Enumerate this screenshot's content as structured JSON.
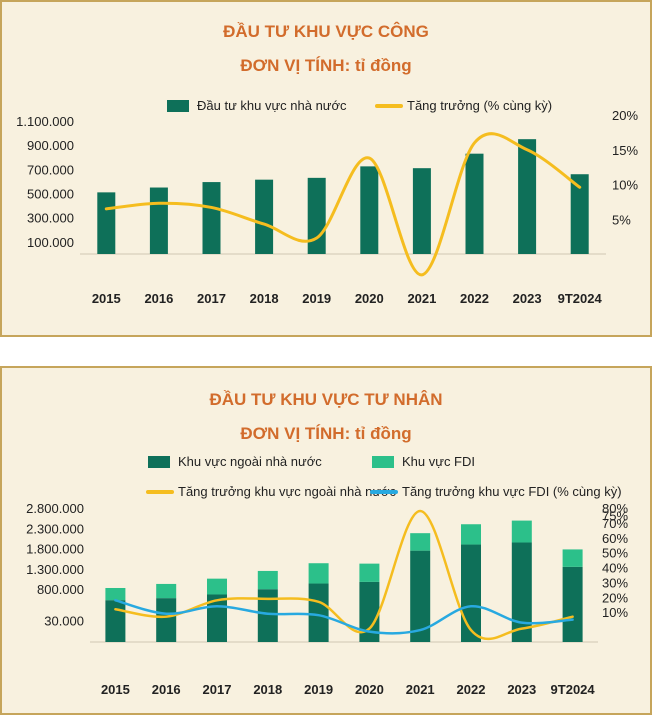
{
  "chart_data": [
    {
      "type": "bar",
      "title": "ĐẦU TƯ KHU VỰC CÔNG",
      "subtitle": "ĐƠN VỊ TÍNH: tỉ đồng",
      "categories": [
        "2015",
        "2016",
        "2017",
        "2018",
        "2019",
        "2020",
        "2021",
        "2022",
        "2023",
        "9T2024"
      ],
      "y_ticks": [
        "100.000",
        "300.000",
        "500.000",
        "700.000",
        "900.000",
        "1.100.000"
      ],
      "y2_ticks": [
        "5%",
        "10%",
        "15%",
        "20%"
      ],
      "ylim": [
        0,
        1150000
      ],
      "y2lim": [
        0,
        20
      ],
      "legend_position": "top",
      "series": [
        {
          "name": "Đầu tư khu vực nhà nước",
          "kind": "bar",
          "axis": "left",
          "color": "#0e7059",
          "values": [
            510000,
            550000,
            595000,
            615000,
            630000,
            725000,
            710000,
            830000,
            950000,
            660000
          ]
        },
        {
          "name": "Tăng trưởng (% cùng kỳ)",
          "kind": "line",
          "axis": "right",
          "color": "#f5bd1f",
          "values": [
            6.5,
            7.3,
            6.7,
            4.3,
            2.3,
            13.8,
            -3.0,
            16.0,
            15.0,
            9.6
          ]
        }
      ]
    },
    {
      "type": "bar",
      "stacked": true,
      "title": "ĐẦU TƯ KHU VỰC TƯ NHÂN",
      "subtitle": "ĐƠN VỊ TÍNH: tỉ đồng",
      "categories": [
        "2015",
        "2016",
        "2017",
        "2018",
        "2019",
        "2020",
        "2021",
        "2022",
        "2023",
        "9T2024"
      ],
      "y_ticks": [
        "30.000",
        "800.000",
        "1.300.000",
        "1.800.000",
        "2.300.000",
        "2.800.000"
      ],
      "y2_ticks": [
        "10%",
        "20%",
        "30%",
        "40%",
        "50%",
        "60%",
        "70%",
        "75%",
        "80%"
      ],
      "ylim": [
        -500000,
        2800000
      ],
      "y2lim": [
        -10,
        80
      ],
      "legend_position": "top",
      "series": [
        {
          "name": "Khu vực ngoài nhà nước",
          "kind": "bar",
          "axis": "left",
          "color": "#0e7059",
          "values": [
            530000,
            580000,
            670000,
            800000,
            940000,
            980000,
            1750000,
            1900000,
            1950000,
            1350000
          ]
        },
        {
          "name": "Khu vực FDI",
          "kind": "bar",
          "axis": "left",
          "color": "#2cc08a",
          "values": [
            300000,
            350000,
            390000,
            450000,
            500000,
            450000,
            430000,
            500000,
            540000,
            430000
          ]
        },
        {
          "name": "Tăng trưởng khu vực ngoài nhà nước",
          "kind": "line",
          "axis": "right",
          "color": "#f5bd1f",
          "values": [
            12,
            7,
            18,
            19,
            17,
            -1,
            78,
            -2,
            -1,
            7
          ]
        },
        {
          "name": "Tăng trưởng khu vực FDI (% cùng kỳ)",
          "kind": "line",
          "axis": "right",
          "color": "#28a9e0",
          "values": [
            18,
            9,
            14,
            9,
            8,
            -3,
            -2,
            14,
            3,
            5
          ]
        }
      ]
    }
  ]
}
